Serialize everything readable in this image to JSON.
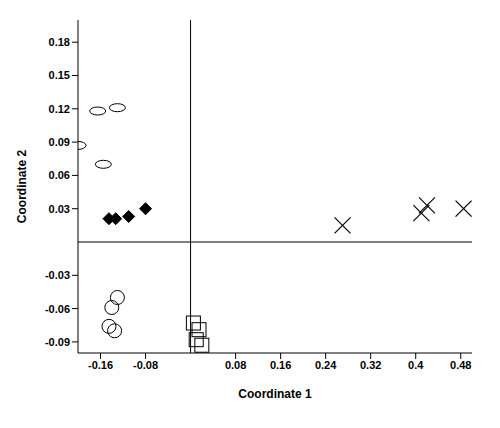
{
  "chart_data": {
    "type": "scatter",
    "x_label": "Coordinate 1",
    "y_label": "Coordinate 2",
    "xlim": [
      -0.2,
      0.5
    ],
    "ylim": [
      -0.1,
      0.2
    ],
    "xticks": [
      -0.16,
      -0.08,
      0.08,
      0.16,
      0.24,
      0.32,
      0.4,
      0.48
    ],
    "yticks": [
      -0.09,
      -0.06,
      -0.03,
      0.03,
      0.06,
      0.09,
      0.12,
      0.15,
      0.18
    ],
    "grid": false,
    "series": [
      {
        "marker": "ellipse",
        "color": "#000000",
        "x": [
          -0.165,
          -0.13,
          -0.2,
          -0.155
        ],
        "y": [
          0.118,
          0.121,
          0.087,
          0.07
        ]
      },
      {
        "marker": "diamond_filled",
        "color": "#000000",
        "x": [
          -0.145,
          -0.133,
          -0.11,
          -0.08
        ],
        "y": [
          0.021,
          0.021,
          0.023,
          0.03
        ]
      },
      {
        "marker": "circle",
        "color": "#000000",
        "x": [
          -0.13,
          -0.14,
          -0.145,
          -0.135
        ],
        "y": [
          -0.05,
          -0.059,
          -0.076,
          -0.08
        ]
      },
      {
        "marker": "x",
        "color": "#000000",
        "x": [
          0.27,
          0.41,
          0.42,
          0.485
        ],
        "y": [
          0.015,
          0.026,
          0.033,
          0.03
        ]
      },
      {
        "marker": "square",
        "color": "#000000",
        "x": [
          0.005,
          0.015,
          0.01,
          0.02
        ],
        "y": [
          -0.073,
          -0.079,
          -0.088,
          -0.093
        ]
      }
    ]
  }
}
